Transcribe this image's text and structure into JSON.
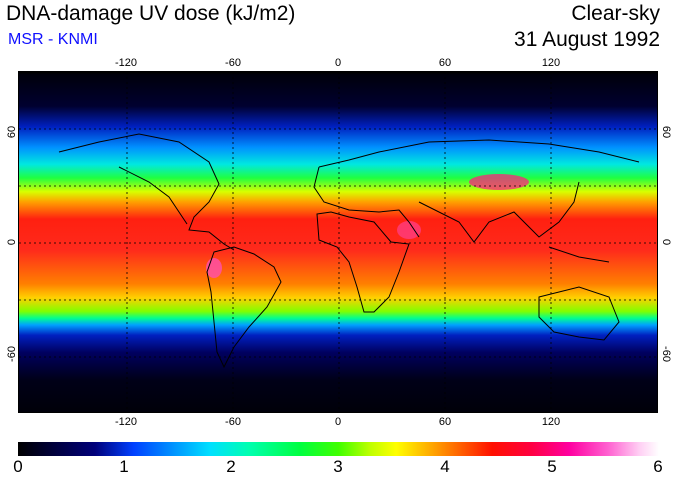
{
  "header": {
    "title": "DNA-damage UV dose (kJ/m2)",
    "subtitle": "MSR - KNMI",
    "condition": "Clear-sky",
    "date": "31 August 1992"
  },
  "map": {
    "projection": "equirectangular",
    "lon_ticks": [
      "-120",
      "-60",
      "0",
      "60",
      "120"
    ],
    "lat_ticks_left": [
      "60",
      "0",
      "-60"
    ],
    "lat_ticks_right": [
      "60",
      "0",
      "-60"
    ],
    "gridlines": "dotted, every 30 degrees"
  },
  "colorbar": {
    "labels": [
      "0",
      "1",
      "2",
      "3",
      "4",
      "5",
      "6"
    ],
    "min": 0,
    "max": 6
  },
  "colors": {
    "subtitle": "#1010ff",
    "low": "#000000",
    "mid_low": "#0040ff",
    "mid": "#00ff40",
    "mid_high": "#ffff00",
    "high": "#ff1000",
    "max": "#ffffff"
  }
}
